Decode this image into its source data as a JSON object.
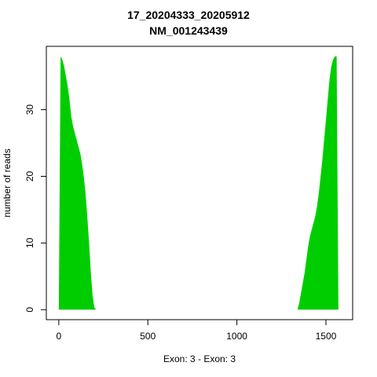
{
  "chart_data": {
    "type": "area",
    "title_lines": [
      "17_20204333_20205912",
      "NM_001243439"
    ],
    "xlabel": "Exon: 3 - Exon: 3",
    "ylabel": "number of reads",
    "xlim": [
      -70,
      1650
    ],
    "ylim": [
      -1.5,
      39.5
    ],
    "x_ticks": [
      0,
      500,
      1000,
      1500
    ],
    "y_ticks": [
      0,
      10,
      20,
      30
    ],
    "grid": false,
    "legend": "none",
    "fill_color": "#00cd00",
    "series": [
      {
        "x": [
          0,
          10,
          20,
          30,
          40,
          50,
          60,
          70,
          80,
          90,
          100,
          110,
          120,
          130,
          140,
          150,
          160,
          170,
          180,
          190,
          200,
          210,
          220,
          230,
          240,
          1340,
          1350,
          1360,
          1370,
          1380,
          1390,
          1400,
          1410,
          1420,
          1430,
          1440,
          1450,
          1460,
          1470,
          1480,
          1490,
          1500,
          1510,
          1520,
          1530,
          1540,
          1550,
          1560,
          1570,
          1579
        ],
        "y": [
          0,
          38,
          37.5,
          36.5,
          35,
          33.5,
          31.5,
          29,
          27.5,
          26.5,
          25.5,
          24.5,
          23.5,
          22,
          20,
          17.5,
          14,
          10,
          5.5,
          2,
          0.3,
          0,
          0,
          0,
          0,
          0,
          1,
          2.5,
          4,
          5.5,
          7.5,
          9.5,
          11,
          12,
          13,
          14,
          15.5,
          17.5,
          20,
          22.5,
          25.5,
          28.5,
          31.5,
          34.5,
          36.5,
          37.5,
          38,
          38,
          0,
          0
        ]
      }
    ]
  }
}
